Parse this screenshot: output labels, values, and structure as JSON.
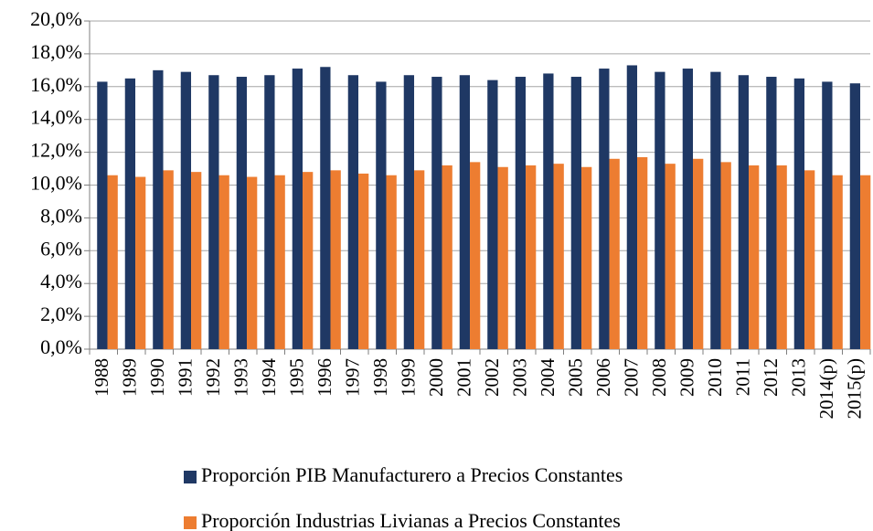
{
  "chart_data": {
    "type": "bar",
    "categories": [
      "1988",
      "1989",
      "1990",
      "1991",
      "1992",
      "1993",
      "1994",
      "1995",
      "1996",
      "1997",
      "1998",
      "1999",
      "2000",
      "2001",
      "2002",
      "2003",
      "2004",
      "2005",
      "2006",
      "2007",
      "2008",
      "2009",
      "2010",
      "2011",
      "2012",
      "2013",
      "2014(p)",
      "2015(p)"
    ],
    "series": [
      {
        "name": "Proporción PIB Manufacturero a Precios Constantes",
        "color": "#1f3864",
        "values": [
          16.3,
          16.5,
          17.0,
          16.9,
          16.7,
          16.6,
          16.7,
          17.1,
          17.2,
          16.7,
          16.3,
          16.7,
          16.6,
          16.7,
          16.4,
          16.6,
          16.8,
          16.6,
          17.1,
          17.3,
          16.9,
          17.1,
          16.9,
          16.7,
          16.6,
          16.5,
          16.3,
          16.2
        ]
      },
      {
        "name": "Proporción Industrias Livianas a Precios Constantes",
        "color": "#ed7d31",
        "values": [
          10.6,
          10.5,
          10.9,
          10.8,
          10.6,
          10.5,
          10.6,
          10.8,
          10.9,
          10.7,
          10.6,
          10.9,
          11.2,
          11.4,
          11.1,
          11.2,
          11.3,
          11.1,
          11.6,
          11.7,
          11.3,
          11.6,
          11.4,
          11.2,
          11.2,
          10.9,
          10.6,
          10.6
        ]
      }
    ],
    "ylim": [
      0,
      20
    ],
    "yticks": [
      {
        "value": 0,
        "label": "0,0%"
      },
      {
        "value": 2,
        "label": "2,0%"
      },
      {
        "value": 4,
        "label": "4,0%"
      },
      {
        "value": 6,
        "label": "6,0%"
      },
      {
        "value": 8,
        "label": "8,0%"
      },
      {
        "value": 10,
        "label": "10,0%"
      },
      {
        "value": 12,
        "label": "12,0%"
      },
      {
        "value": 14,
        "label": "14,0%"
      },
      {
        "value": 16,
        "label": "16,0%"
      },
      {
        "value": 18,
        "label": "18,0%"
      },
      {
        "value": 20,
        "label": "20,0%"
      }
    ],
    "grid": true,
    "legend": "bottom"
  }
}
